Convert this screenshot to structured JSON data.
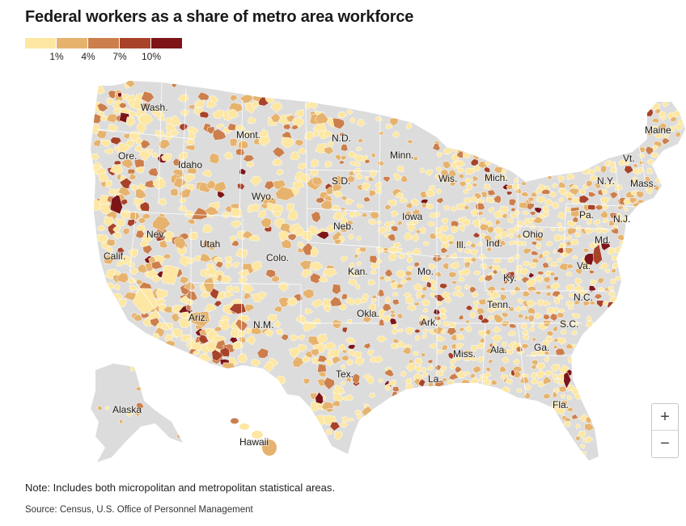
{
  "header": {
    "title": "Federal workers as a share of metro area workforce"
  },
  "legend": {
    "colors": [
      "#fde7a2",
      "#e6b36e",
      "#cc7f4c",
      "#a8432a",
      "#7d1518"
    ],
    "ticks": [
      {
        "label": "1%",
        "value": 1
      },
      {
        "label": "4%",
        "value": 4
      },
      {
        "label": "7%",
        "value": 7
      },
      {
        "label": "10%",
        "value": 10
      }
    ]
  },
  "map": {
    "base_color": "#dcdcdc",
    "border_color": "#ffffff",
    "state_labels": [
      {
        "id": "wa",
        "text": "Wash."
      },
      {
        "id": "or",
        "text": "Ore."
      },
      {
        "id": "id",
        "text": "Idaho"
      },
      {
        "id": "mt",
        "text": "Mont."
      },
      {
        "id": "wy",
        "text": "Wyo."
      },
      {
        "id": "nv",
        "text": "Nev."
      },
      {
        "id": "ut",
        "text": "Utah"
      },
      {
        "id": "ca",
        "text": "Calif."
      },
      {
        "id": "co",
        "text": "Colo."
      },
      {
        "id": "az",
        "text": "Ariz."
      },
      {
        "id": "nm",
        "text": "N.M."
      },
      {
        "id": "nd",
        "text": "N.D."
      },
      {
        "id": "sd",
        "text": "S.D."
      },
      {
        "id": "ne",
        "text": "Neb."
      },
      {
        "id": "ks",
        "text": "Kan."
      },
      {
        "id": "ok",
        "text": "Okla."
      },
      {
        "id": "tx",
        "text": "Tex."
      },
      {
        "id": "mn",
        "text": "Minn."
      },
      {
        "id": "ia",
        "text": "Iowa"
      },
      {
        "id": "mo",
        "text": "Mo."
      },
      {
        "id": "ar",
        "text": "Ark."
      },
      {
        "id": "la",
        "text": "La."
      },
      {
        "id": "wi",
        "text": "Wis."
      },
      {
        "id": "il",
        "text": "Ill."
      },
      {
        "id": "mi",
        "text": "Mich."
      },
      {
        "id": "in",
        "text": "Ind."
      },
      {
        "id": "oh",
        "text": "Ohio"
      },
      {
        "id": "ky",
        "text": "Ky."
      },
      {
        "id": "tn",
        "text": "Tenn."
      },
      {
        "id": "ms",
        "text": "Miss."
      },
      {
        "id": "al",
        "text": "Ala."
      },
      {
        "id": "ga",
        "text": "Ga."
      },
      {
        "id": "fl",
        "text": "Fla."
      },
      {
        "id": "sc",
        "text": "S.C."
      },
      {
        "id": "nc",
        "text": "N.C."
      },
      {
        "id": "va",
        "text": "Va."
      },
      {
        "id": "md",
        "text": "Md."
      },
      {
        "id": "pa",
        "text": "Pa."
      },
      {
        "id": "nj",
        "text": "N.J."
      },
      {
        "id": "ny",
        "text": "N.Y."
      },
      {
        "id": "vt",
        "text": "Vt."
      },
      {
        "id": "ma",
        "text": "Mass."
      },
      {
        "id": "me",
        "text": "Maine"
      },
      {
        "id": "ak",
        "text": "Alaska"
      },
      {
        "id": "hi",
        "text": "Hawaii"
      }
    ]
  },
  "controls": {
    "zoom_in": "+",
    "zoom_out": "−"
  },
  "footer": {
    "note": "Note: Includes both micropolitan and metropolitan statistical areas.",
    "source": "Source: Census, U.S. Office of Personnel Management"
  }
}
